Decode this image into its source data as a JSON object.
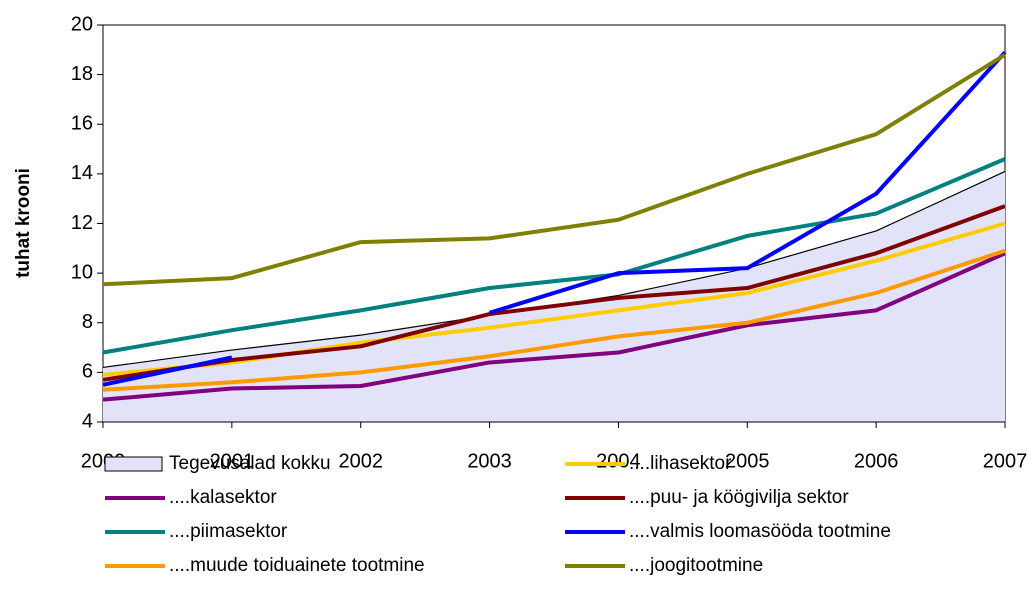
{
  "chart_data": {
    "type": "line",
    "y_label": "tuhat krooni",
    "x": [
      2000,
      2001,
      2002,
      2003,
      2004,
      2005,
      2006,
      2007
    ],
    "xlim": [
      2000,
      2007
    ],
    "xticks": [
      2000,
      2001,
      2002,
      2003,
      2004,
      2005,
      2006,
      2007
    ],
    "ylim": [
      4,
      20
    ],
    "yticks": [
      4,
      6,
      8,
      10,
      12,
      14,
      16,
      18,
      20
    ],
    "series": [
      {
        "name": "Tegevusalad kokku",
        "color": "#000000",
        "area": true,
        "fill": "#e2e2f8",
        "values": [
          6.2,
          6.9,
          7.5,
          8.3,
          9.1,
          10.2,
          11.7,
          14.1
        ]
      },
      {
        "name": "....lihasektor",
        "color": "#ffcc00",
        "values": [
          5.9,
          6.4,
          7.2,
          7.8,
          8.5,
          9.2,
          10.5,
          12.0
        ]
      },
      {
        "name": "....kalasektor",
        "color": "#800080",
        "values": [
          4.9,
          5.35,
          5.45,
          6.4,
          6.8,
          7.9,
          8.5,
          10.8
        ]
      },
      {
        "name": "....puu- ja köögivilja sektor",
        "color": "#800000",
        "values": [
          5.7,
          6.5,
          7.05,
          8.35,
          9.0,
          9.4,
          10.8,
          12.7
        ]
      },
      {
        "name": "....piimasektor",
        "color": "#008080",
        "values": [
          6.8,
          7.7,
          8.5,
          9.4,
          9.95,
          11.5,
          12.4,
          14.6
        ]
      },
      {
        "name": "....valmis loomasööda tootmine",
        "color": "#0000ff",
        "values": [
          5.5,
          6.6,
          null,
          8.4,
          10.0,
          10.2,
          13.2,
          18.9
        ]
      },
      {
        "name": "....muude toiduainete tootmine",
        "color": "#ff9900",
        "values": [
          5.3,
          5.6,
          6.0,
          6.65,
          7.45,
          8.0,
          9.2,
          10.9
        ]
      },
      {
        "name": "....joogitootmine",
        "color": "#808000",
        "values": [
          9.55,
          9.8,
          11.25,
          11.4,
          12.15,
          14.0,
          15.6,
          18.8
        ]
      }
    ]
  }
}
